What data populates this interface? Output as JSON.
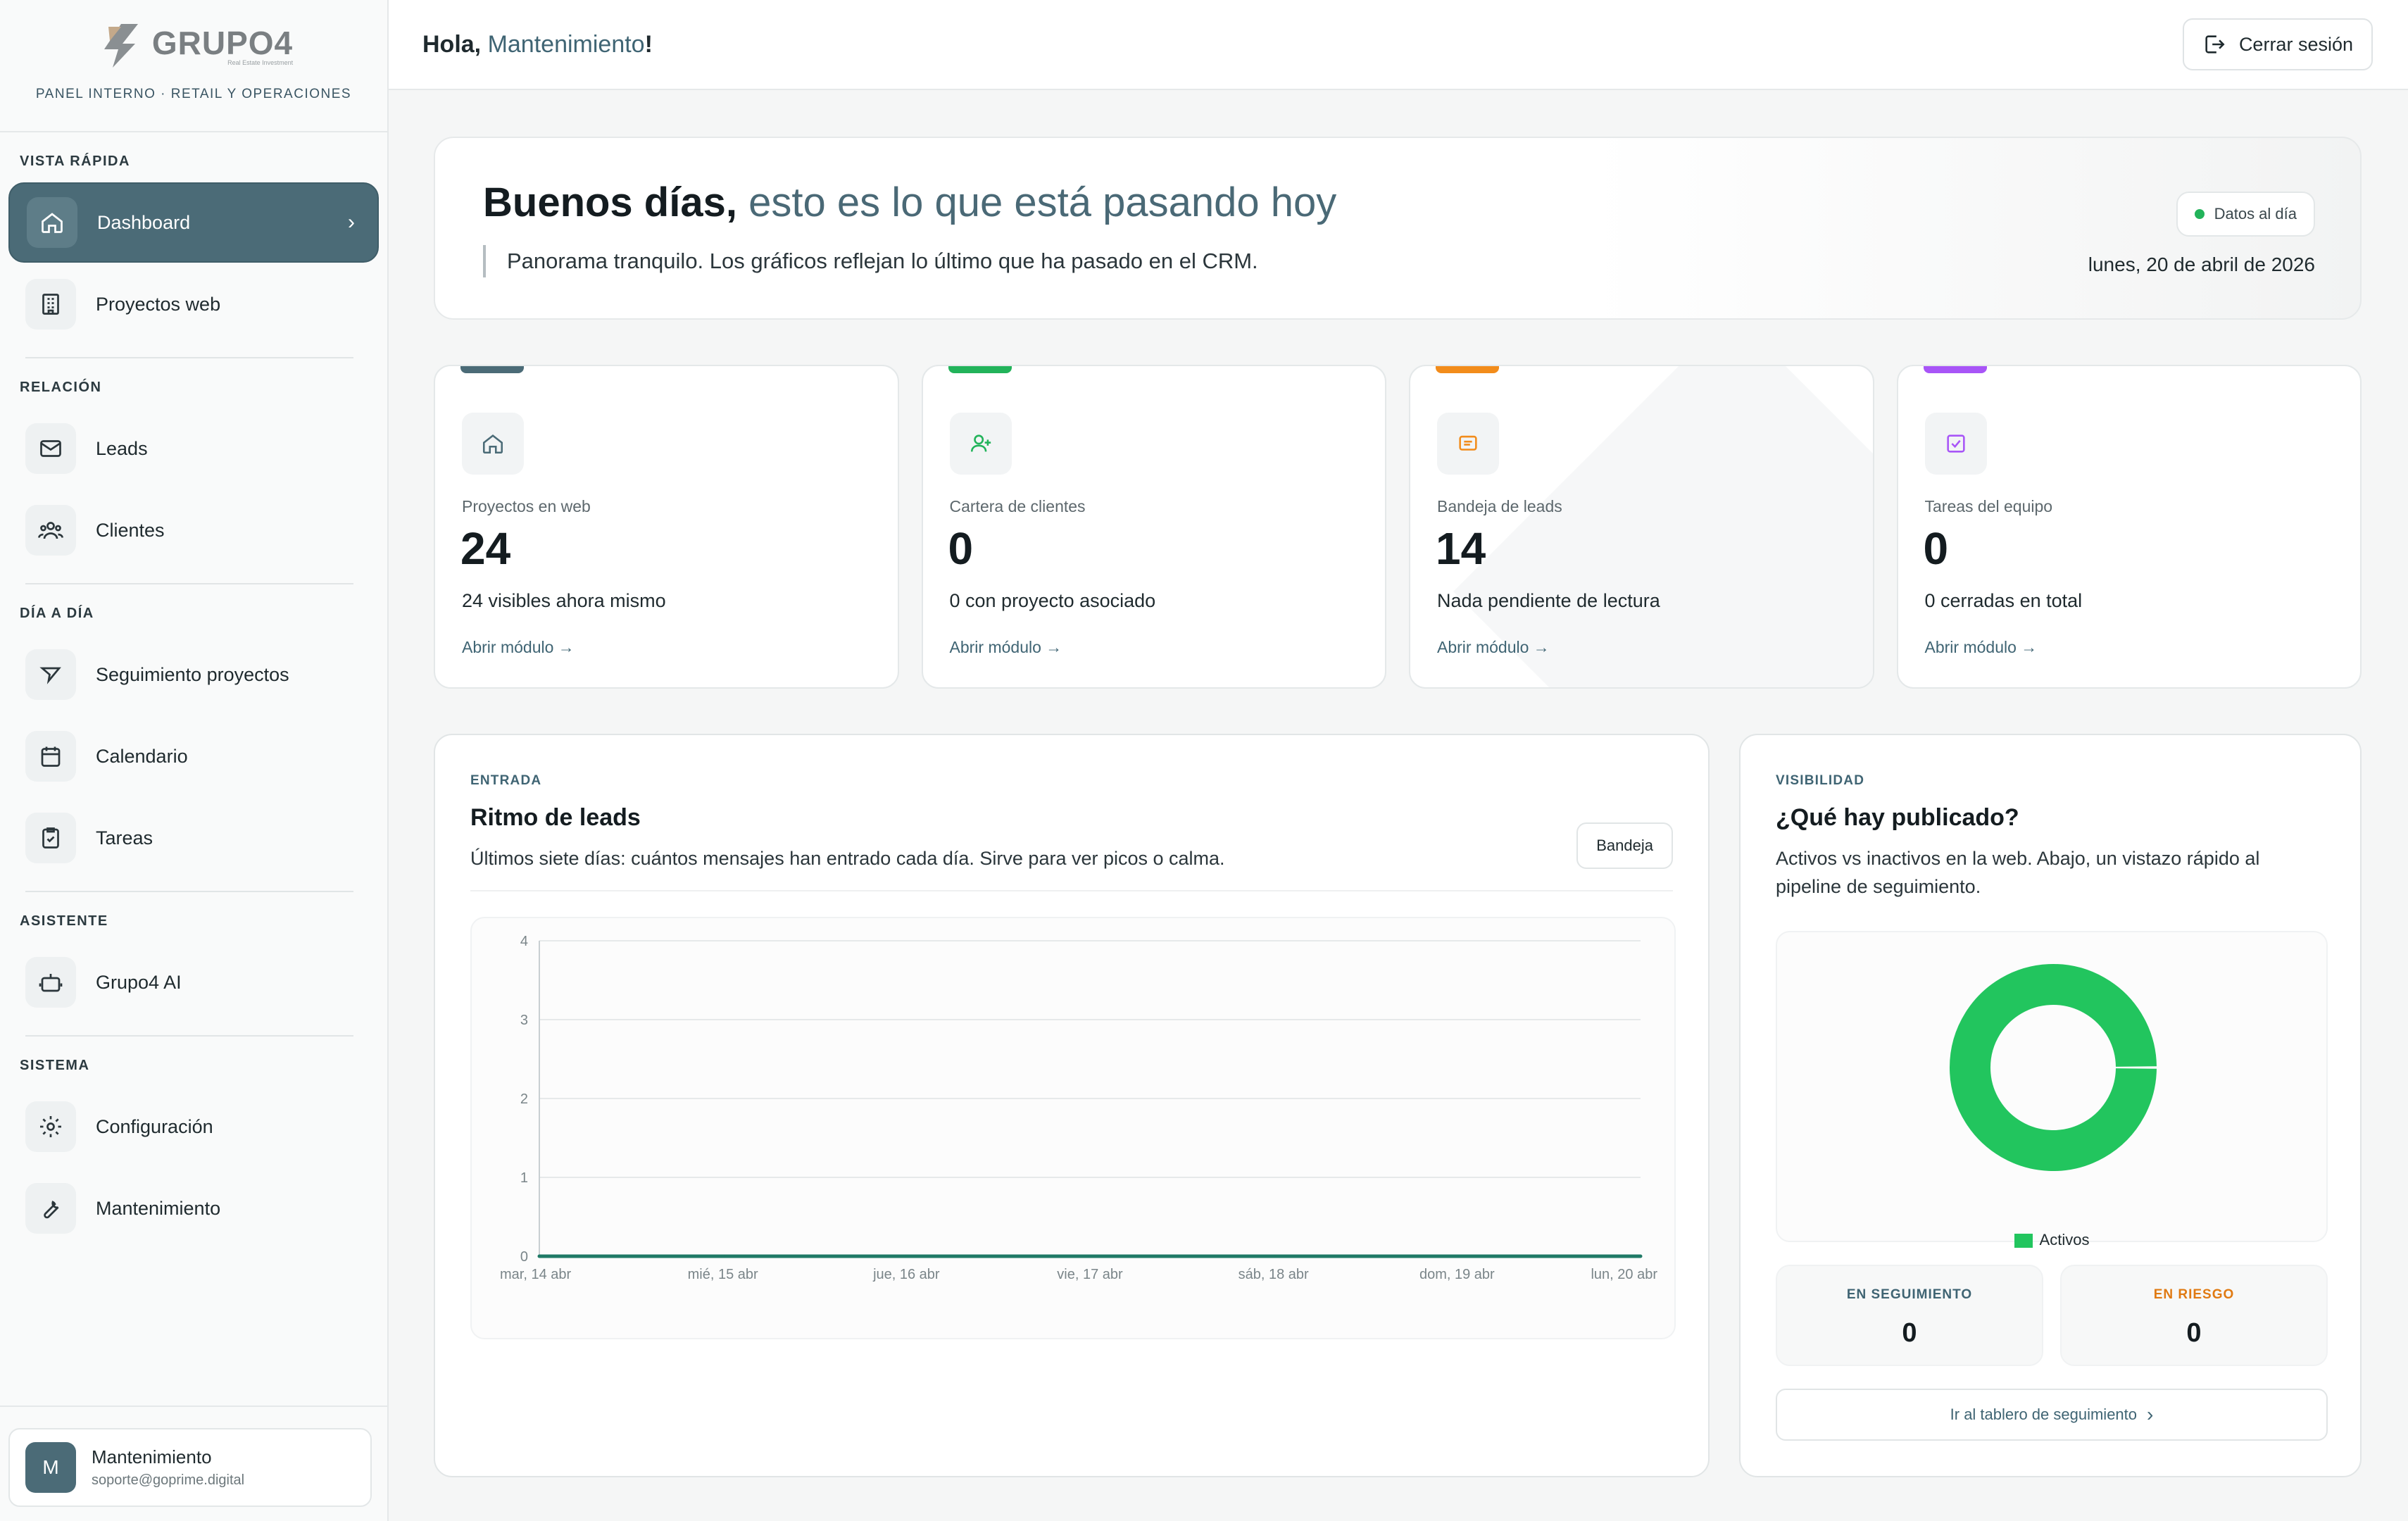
{
  "brand": {
    "name": "GRUPO4",
    "sub": "Real Estate Investment",
    "tagline": "PANEL INTERNO · RETAIL Y OPERACIONES"
  },
  "sidebar": {
    "sections": [
      {
        "title": "VISTA RÁPIDA",
        "items": [
          {
            "label": "Dashboard",
            "icon": "home-icon",
            "active": true
          },
          {
            "label": "Proyectos web",
            "icon": "building-icon"
          }
        ]
      },
      {
        "title": "RELACIÓN",
        "items": [
          {
            "label": "Leads",
            "icon": "mail-icon"
          },
          {
            "label": "Clientes",
            "icon": "users-icon"
          }
        ]
      },
      {
        "title": "DÍA A DÍA",
        "items": [
          {
            "label": "Seguimiento proyectos",
            "icon": "send-icon"
          },
          {
            "label": "Calendario",
            "icon": "calendar-icon"
          },
          {
            "label": "Tareas",
            "icon": "clipboard-check-icon"
          }
        ]
      },
      {
        "title": "ASISTENTE",
        "items": [
          {
            "label": "Grupo4 AI",
            "icon": "bot-icon"
          }
        ]
      },
      {
        "title": "SISTEMA",
        "items": [
          {
            "label": "Configuración",
            "icon": "gear-icon"
          },
          {
            "label": "Mantenimiento",
            "icon": "wrench-icon"
          }
        ]
      }
    ],
    "user": {
      "initial": "M",
      "name": "Mantenimiento",
      "email": "soporte@goprime.digital"
    }
  },
  "topbar": {
    "greeting_prefix": "Hola, ",
    "greeting_name": "Mantenimiento",
    "greeting_suffix": "!",
    "logout_label": "Cerrar sesión"
  },
  "hero": {
    "title_bold": "Buenos días,",
    "title_rest": " esto es lo que está pasando hoy",
    "quote": "Panorama tranquilo. Los gráficos reflejan lo último que ha pasado en el CRM.",
    "badge": "Datos al día",
    "date": "lunes, 20 de abril de 2026"
  },
  "stats": [
    {
      "label": "Proyectos en web",
      "value": "24",
      "desc": "24 visibles ahora mismo",
      "link": "Abrir módulo →",
      "color": "#4b6b77",
      "icon": "home-icon"
    },
    {
      "label": "Cartera de clientes",
      "value": "0",
      "desc": "0 con proyecto asociado",
      "link": "Abrir módulo →",
      "color": "#22b35a",
      "icon": "user-plus-icon"
    },
    {
      "label": "Bandeja de leads",
      "value": "14",
      "desc": "Nada pendiente de lectura",
      "link": "Abrir módulo →",
      "color": "#f28c1b",
      "icon": "message-icon"
    },
    {
      "label": "Tareas del equipo",
      "value": "0",
      "desc": "0 cerradas en total",
      "link": "Abrir módulo →",
      "color": "#a855f7",
      "icon": "checkbox-icon"
    }
  ],
  "leads": {
    "eyebrow": "ENTRADA",
    "title": "Ritmo de leads",
    "subtitle": "Últimos siete días: cuántos mensajes han entrado cada día. Sirve para ver picos o calma.",
    "button": "Bandeja"
  },
  "chart_data": {
    "type": "line",
    "categories": [
      "mar, 14 abr",
      "mié, 15 abr",
      "jue, 16 abr",
      "vie, 17 abr",
      "sáb, 18 abr",
      "dom, 19 abr",
      "lun, 20 abr"
    ],
    "series": [
      {
        "values": [
          0,
          0,
          0,
          0,
          0,
          0,
          0
        ]
      }
    ],
    "ylim": [
      0,
      4
    ],
    "yticks": [
      0,
      1,
      2,
      3,
      4
    ],
    "grid": true,
    "line_color": "#1f7a66"
  },
  "visibility": {
    "eyebrow": "VISIBILIDAD",
    "title": "¿Qué hay publicado?",
    "subtitle": "Activos vs inactivos en la web. Abajo, un vistazo rápido al pipeline de seguimiento.",
    "donut": {
      "type": "pie",
      "labels": [
        "Activos"
      ],
      "values": [
        24
      ],
      "color": "#22c55e"
    },
    "legend_label": "Activos",
    "tracking_label": "EN SEGUIMIENTO",
    "tracking_value": "0",
    "tracking_color": "#3f6473",
    "risk_label": "EN RIESGO",
    "risk_value": "0",
    "risk_color": "#e07a12",
    "board_link": "Ir al tablero de seguimiento"
  }
}
